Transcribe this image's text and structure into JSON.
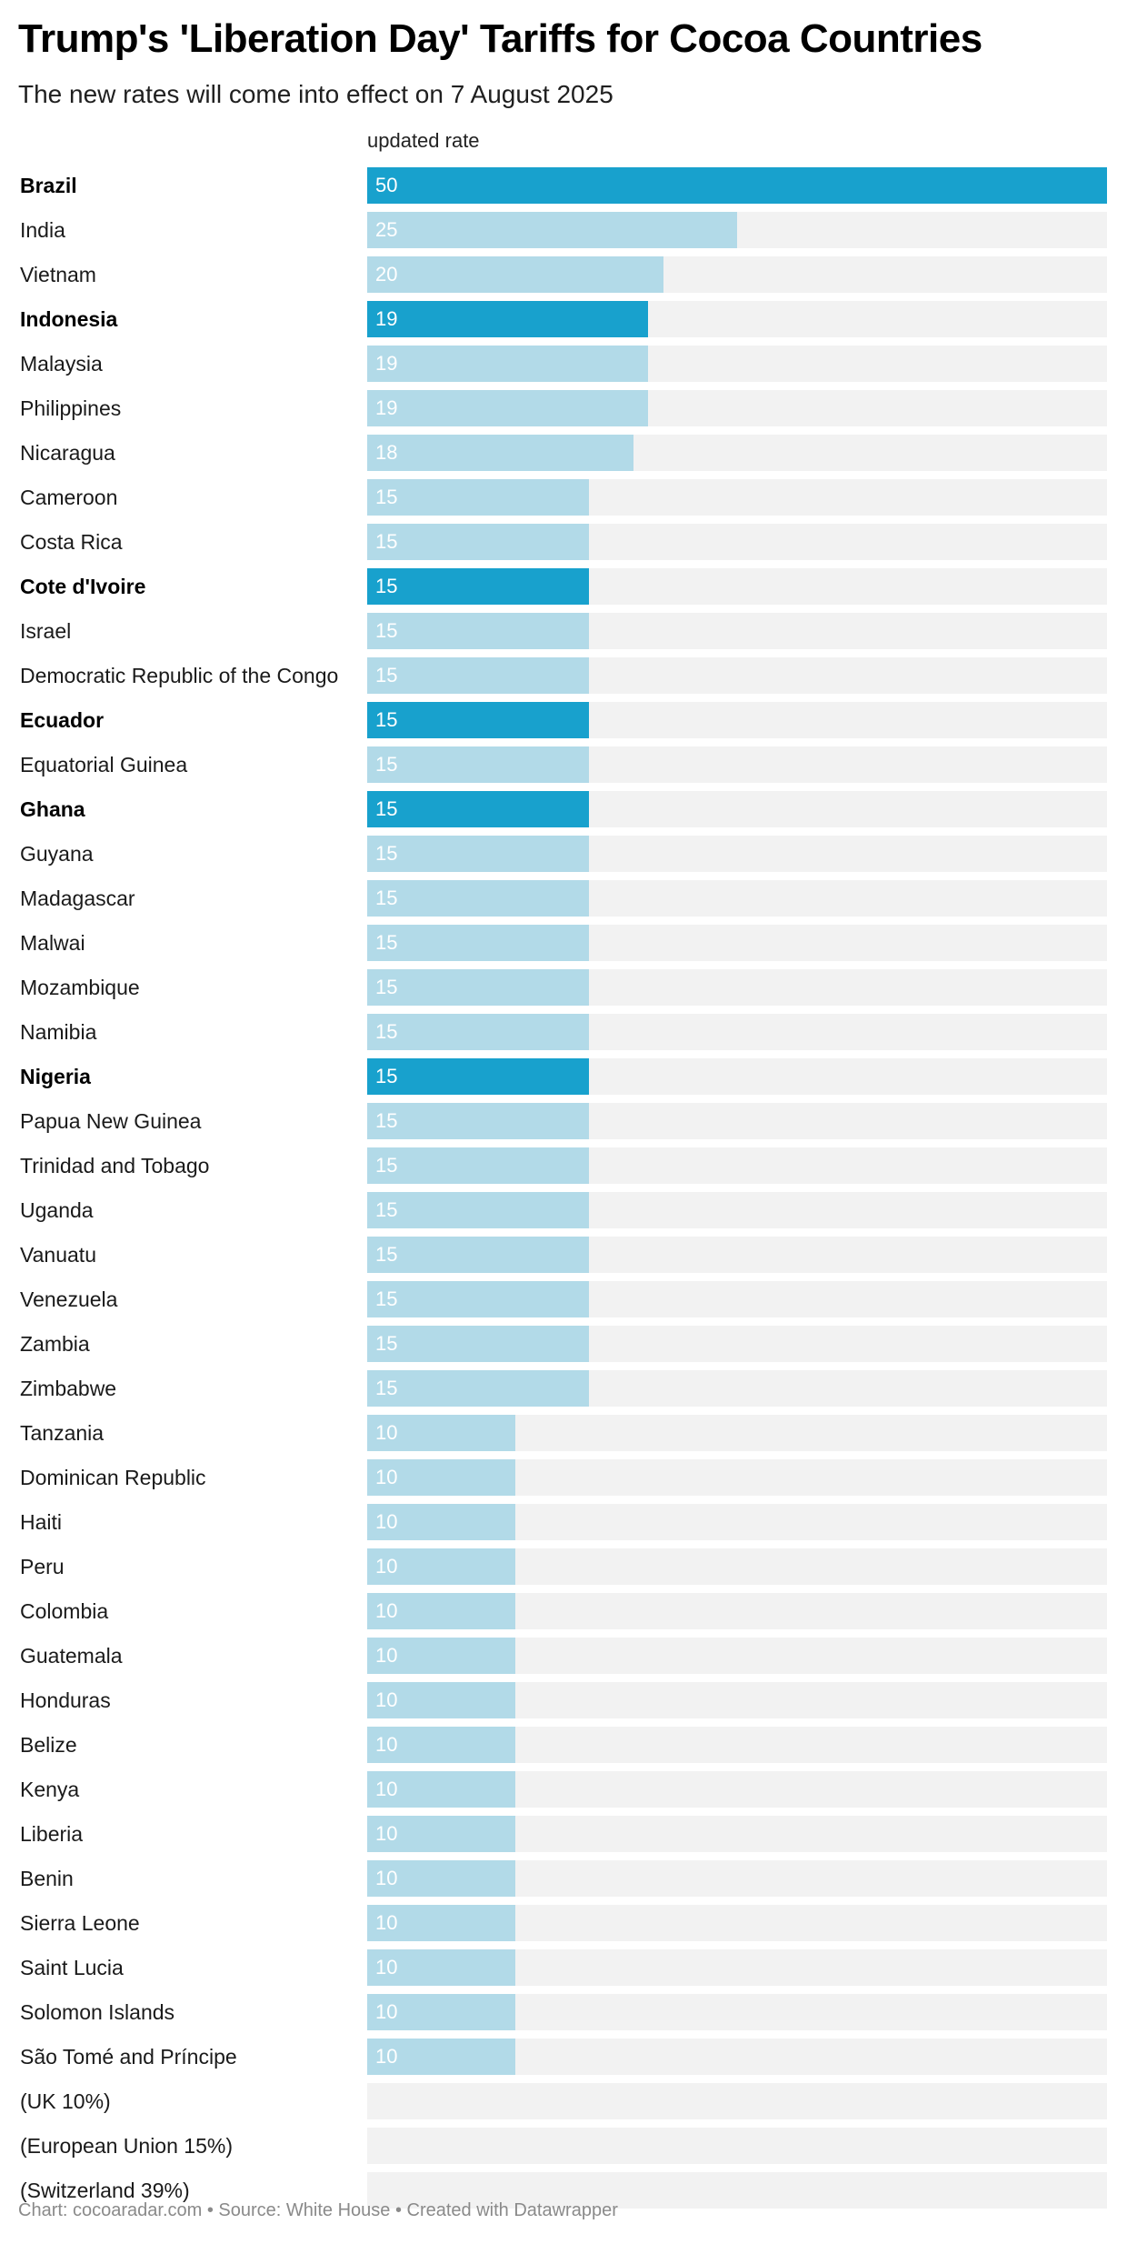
{
  "chart_data": {
    "type": "bar",
    "title": "Trump's 'Liberation Day' Tariffs for Cocoa Countries",
    "subtitle": "The new rates will come into effect on 7 August 2025",
    "column_header": "updated rate",
    "xlim": [
      0,
      50
    ],
    "colors": {
      "highlight": "#18a1cd",
      "normal": "#b2dae8",
      "track": "#f2f2f2"
    },
    "rows": [
      {
        "label": "Brazil",
        "value": 50,
        "highlight": true
      },
      {
        "label": "India",
        "value": 25,
        "highlight": false
      },
      {
        "label": "Vietnam",
        "value": 20,
        "highlight": false
      },
      {
        "label": "Indonesia",
        "value": 19,
        "highlight": true
      },
      {
        "label": "Malaysia",
        "value": 19,
        "highlight": false
      },
      {
        "label": "Philippines",
        "value": 19,
        "highlight": false
      },
      {
        "label": "Nicaragua",
        "value": 18,
        "highlight": false
      },
      {
        "label": "Cameroon",
        "value": 15,
        "highlight": false
      },
      {
        "label": "Costa Rica",
        "value": 15,
        "highlight": false
      },
      {
        "label": "Cote d'Ivoire",
        "value": 15,
        "highlight": true
      },
      {
        "label": "Israel",
        "value": 15,
        "highlight": false
      },
      {
        "label": "Democratic Republic of the Congo",
        "value": 15,
        "highlight": false
      },
      {
        "label": "Ecuador",
        "value": 15,
        "highlight": true
      },
      {
        "label": "Equatorial Guinea",
        "value": 15,
        "highlight": false
      },
      {
        "label": "Ghana",
        "value": 15,
        "highlight": true
      },
      {
        "label": "Guyana",
        "value": 15,
        "highlight": false
      },
      {
        "label": "Madagascar",
        "value": 15,
        "highlight": false
      },
      {
        "label": "Malwai",
        "value": 15,
        "highlight": false
      },
      {
        "label": "Mozambique",
        "value": 15,
        "highlight": false
      },
      {
        "label": "Namibia",
        "value": 15,
        "highlight": false
      },
      {
        "label": "Nigeria",
        "value": 15,
        "highlight": true
      },
      {
        "label": "Papua New Guinea",
        "value": 15,
        "highlight": false
      },
      {
        "label": "Trinidad and Tobago",
        "value": 15,
        "highlight": false
      },
      {
        "label": "Uganda",
        "value": 15,
        "highlight": false
      },
      {
        "label": "Vanuatu",
        "value": 15,
        "highlight": false
      },
      {
        "label": "Venezuela",
        "value": 15,
        "highlight": false
      },
      {
        "label": "Zambia",
        "value": 15,
        "highlight": false
      },
      {
        "label": "Zimbabwe",
        "value": 15,
        "highlight": false
      },
      {
        "label": "Tanzania",
        "value": 10,
        "highlight": false
      },
      {
        "label": "Dominican Republic",
        "value": 10,
        "highlight": false
      },
      {
        "label": "Haiti",
        "value": 10,
        "highlight": false
      },
      {
        "label": "Peru",
        "value": 10,
        "highlight": false
      },
      {
        "label": "Colombia",
        "value": 10,
        "highlight": false
      },
      {
        "label": "Guatemala",
        "value": 10,
        "highlight": false
      },
      {
        "label": "Honduras",
        "value": 10,
        "highlight": false
      },
      {
        "label": "Belize",
        "value": 10,
        "highlight": false
      },
      {
        "label": "Kenya",
        "value": 10,
        "highlight": false
      },
      {
        "label": "Liberia",
        "value": 10,
        "highlight": false
      },
      {
        "label": "Benin",
        "value": 10,
        "highlight": false
      },
      {
        "label": "Sierra Leone",
        "value": 10,
        "highlight": false
      },
      {
        "label": "Saint Lucia",
        "value": 10,
        "highlight": false
      },
      {
        "label": "Solomon Islands",
        "value": 10,
        "highlight": false
      },
      {
        "label": "São Tomé and Príncipe",
        "value": 10,
        "highlight": false
      },
      {
        "label": "(UK 10%)",
        "value": null,
        "highlight": false
      },
      {
        "label": "(European Union 15%)",
        "value": null,
        "highlight": false
      },
      {
        "label": "(Switzerland 39%)",
        "value": null,
        "highlight": false
      }
    ],
    "footer": "Chart: cocoaradar.com • Source: White House • Created with Datawrapper"
  }
}
